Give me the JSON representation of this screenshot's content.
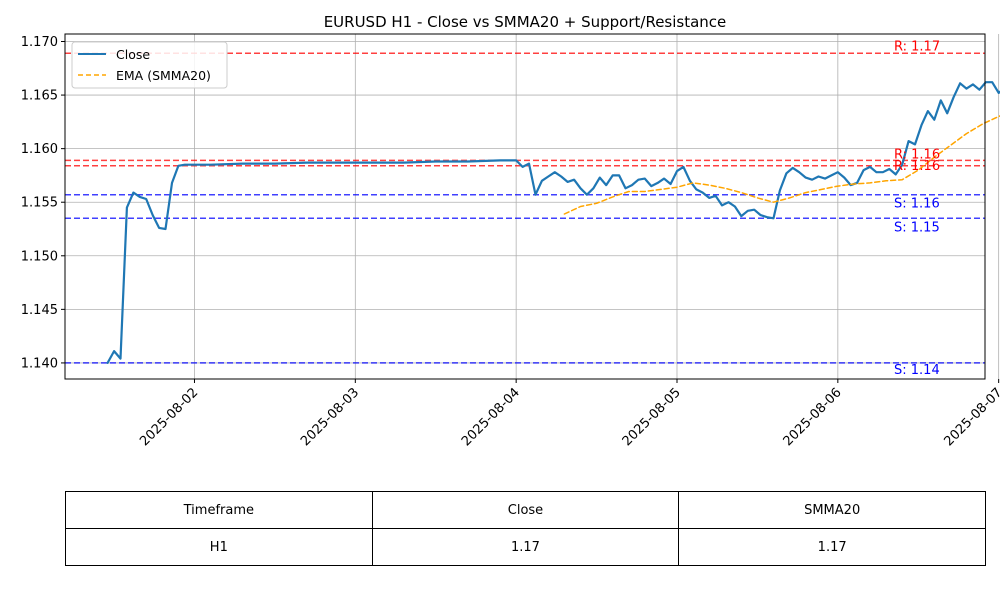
{
  "chart_data": {
    "type": "line",
    "title": "EURUSD H1 - Close vs SMMA20 + Support/Resistance",
    "xlabel": "",
    "ylabel": "",
    "x_tick_labels": [
      "2025-08-02",
      "2025-08-03",
      "2025-08-04",
      "2025-08-05",
      "2025-08-06",
      "2025-08-07"
    ],
    "x_ticks_days": [
      1,
      2,
      3,
      4,
      5,
      6
    ],
    "ylim": [
      1.1385,
      1.1707
    ],
    "xlim_days": [
      0.195,
      5.915
    ],
    "y_ticks": [
      1.14,
      1.145,
      1.15,
      1.155,
      1.16,
      1.165,
      1.17
    ],
    "y_tick_labels": [
      "1.140",
      "1.145",
      "1.150",
      "1.155",
      "1.160",
      "1.165",
      "1.170"
    ],
    "grid": true,
    "legend_position": "top-left",
    "series": [
      {
        "name": "Close",
        "color": "#1f77b4",
        "style": "solid",
        "points": [
          [
            0.46,
            1.14
          ],
          [
            0.5,
            1.1411
          ],
          [
            0.54,
            1.1404
          ],
          [
            0.58,
            1.1545
          ],
          [
            0.62,
            1.1559
          ],
          [
            0.66,
            1.1555
          ],
          [
            0.7,
            1.1553
          ],
          [
            0.74,
            1.1538
          ],
          [
            0.78,
            1.1526
          ],
          [
            0.82,
            1.1525
          ],
          [
            0.86,
            1.1568
          ],
          [
            0.9,
            1.1584
          ],
          [
            0.94,
            1.1585
          ],
          [
            0.98,
            1.1585
          ],
          [
            1.1,
            1.1585
          ],
          [
            1.3,
            1.1586
          ],
          [
            1.5,
            1.1586
          ],
          [
            1.7,
            1.1587
          ],
          [
            1.9,
            1.1587
          ],
          [
            2.1,
            1.1587
          ],
          [
            2.3,
            1.1587
          ],
          [
            2.5,
            1.1588
          ],
          [
            2.7,
            1.1588
          ],
          [
            2.9,
            1.1589
          ],
          [
            3.0,
            1.1589
          ],
          [
            3.04,
            1.1583
          ],
          [
            3.08,
            1.1586
          ],
          [
            3.12,
            1.1557
          ],
          [
            3.16,
            1.157
          ],
          [
            3.2,
            1.1574
          ],
          [
            3.24,
            1.1578
          ],
          [
            3.28,
            1.1574
          ],
          [
            3.32,
            1.1569
          ],
          [
            3.36,
            1.1571
          ],
          [
            3.4,
            1.1563
          ],
          [
            3.44,
            1.1557
          ],
          [
            3.48,
            1.1563
          ],
          [
            3.52,
            1.1573
          ],
          [
            3.56,
            1.1566
          ],
          [
            3.6,
            1.1575
          ],
          [
            3.64,
            1.1575
          ],
          [
            3.68,
            1.1563
          ],
          [
            3.72,
            1.1566
          ],
          [
            3.76,
            1.1571
          ],
          [
            3.8,
            1.1572
          ],
          [
            3.84,
            1.1565
          ],
          [
            3.88,
            1.1568
          ],
          [
            3.92,
            1.1572
          ],
          [
            3.96,
            1.1567
          ],
          [
            4.0,
            1.1579
          ],
          [
            4.04,
            1.1583
          ],
          [
            4.08,
            1.157
          ],
          [
            4.12,
            1.1562
          ],
          [
            4.16,
            1.1559
          ],
          [
            4.2,
            1.1554
          ],
          [
            4.24,
            1.1556
          ],
          [
            4.28,
            1.1547
          ],
          [
            4.32,
            1.155
          ],
          [
            4.36,
            1.1546
          ],
          [
            4.4,
            1.1537
          ],
          [
            4.44,
            1.1542
          ],
          [
            4.48,
            1.1543
          ],
          [
            4.52,
            1.1538
          ],
          [
            4.56,
            1.1536
          ],
          [
            4.6,
            1.1535
          ],
          [
            4.64,
            1.1561
          ],
          [
            4.68,
            1.1577
          ],
          [
            4.72,
            1.1582
          ],
          [
            4.76,
            1.1578
          ],
          [
            4.8,
            1.1573
          ],
          [
            4.84,
            1.1571
          ],
          [
            4.88,
            1.1574
          ],
          [
            4.92,
            1.1572
          ],
          [
            4.96,
            1.1575
          ],
          [
            5.0,
            1.1578
          ],
          [
            5.04,
            1.1573
          ],
          [
            5.08,
            1.1566
          ],
          [
            5.12,
            1.1568
          ],
          [
            5.16,
            1.158
          ],
          [
            5.2,
            1.1583
          ],
          [
            5.24,
            1.1578
          ],
          [
            5.28,
            1.1578
          ],
          [
            5.32,
            1.1581
          ],
          [
            5.36,
            1.1576
          ],
          [
            5.4,
            1.1585
          ],
          [
            5.44,
            1.1607
          ],
          [
            5.48,
            1.1604
          ],
          [
            5.52,
            1.1622
          ],
          [
            5.56,
            1.1635
          ],
          [
            5.6,
            1.1627
          ],
          [
            5.64,
            1.1645
          ],
          [
            5.68,
            1.1633
          ],
          [
            5.72,
            1.1648
          ],
          [
            5.76,
            1.1661
          ],
          [
            5.8,
            1.1656
          ],
          [
            5.84,
            1.166
          ],
          [
            5.88,
            1.1655
          ],
          [
            5.92,
            1.1662
          ],
          [
            5.96,
            1.1662
          ],
          [
            6.0,
            1.1652
          ],
          [
            6.04,
            1.1657
          ],
          [
            6.08,
            1.1657
          ],
          [
            6.12,
            1.1664
          ],
          [
            6.16,
            1.167
          ],
          [
            6.2,
            1.1673
          ],
          [
            6.24,
            1.1674
          ],
          [
            6.28,
            1.1688
          ],
          [
            6.32,
            1.1683
          ],
          [
            6.36,
            1.167
          ],
          [
            6.4,
            1.167
          ],
          [
            6.44,
            1.1644
          ],
          [
            6.48,
            1.1654
          ]
        ]
      },
      {
        "name": "EMA (SMMA20)",
        "color": "#ffa500",
        "style": "dashed",
        "points": [
          [
            3.3,
            1.1539
          ],
          [
            3.4,
            1.1546
          ],
          [
            3.5,
            1.1549
          ],
          [
            3.6,
            1.1555
          ],
          [
            3.7,
            1.156
          ],
          [
            3.8,
            1.156
          ],
          [
            3.9,
            1.1562
          ],
          [
            4.0,
            1.1564
          ],
          [
            4.1,
            1.1568
          ],
          [
            4.2,
            1.1566
          ],
          [
            4.3,
            1.1563
          ],
          [
            4.4,
            1.1559
          ],
          [
            4.5,
            1.1554
          ],
          [
            4.6,
            1.155
          ],
          [
            4.7,
            1.1554
          ],
          [
            4.8,
            1.1559
          ],
          [
            4.9,
            1.1562
          ],
          [
            5.0,
            1.1565
          ],
          [
            5.1,
            1.1567
          ],
          [
            5.2,
            1.1568
          ],
          [
            5.3,
            1.157
          ],
          [
            5.4,
            1.1571
          ],
          [
            5.5,
            1.158
          ],
          [
            5.6,
            1.1592
          ],
          [
            5.7,
            1.1603
          ],
          [
            5.8,
            1.1614
          ],
          [
            5.9,
            1.1623
          ],
          [
            6.0,
            1.163
          ],
          [
            6.1,
            1.1636
          ],
          [
            6.2,
            1.1642
          ],
          [
            6.3,
            1.1652
          ],
          [
            6.4,
            1.1656
          ],
          [
            6.48,
            1.1655
          ]
        ]
      }
    ],
    "levels": [
      {
        "type": "resistance",
        "label": "R: 1.17",
        "value": 1.1689,
        "color": "#ff0000"
      },
      {
        "type": "resistance",
        "label": "R: 1.16",
        "value": 1.1589,
        "color": "#ff0000"
      },
      {
        "type": "resistance",
        "label": "R: 1.16",
        "value": 1.1584,
        "color": "#ff0000"
      },
      {
        "type": "support",
        "label": "S: 1.16",
        "value": 1.1557,
        "color": "#0000ff"
      },
      {
        "type": "support",
        "label": "S: 1.15",
        "value": 1.1535,
        "color": "#0000ff"
      },
      {
        "type": "support",
        "label": "S: 1.14",
        "value": 1.14,
        "color": "#0000ff"
      }
    ]
  },
  "table": {
    "headers": [
      "Timeframe",
      "Close",
      "SMMA20"
    ],
    "row": [
      "H1",
      "1.17",
      "1.17"
    ]
  }
}
